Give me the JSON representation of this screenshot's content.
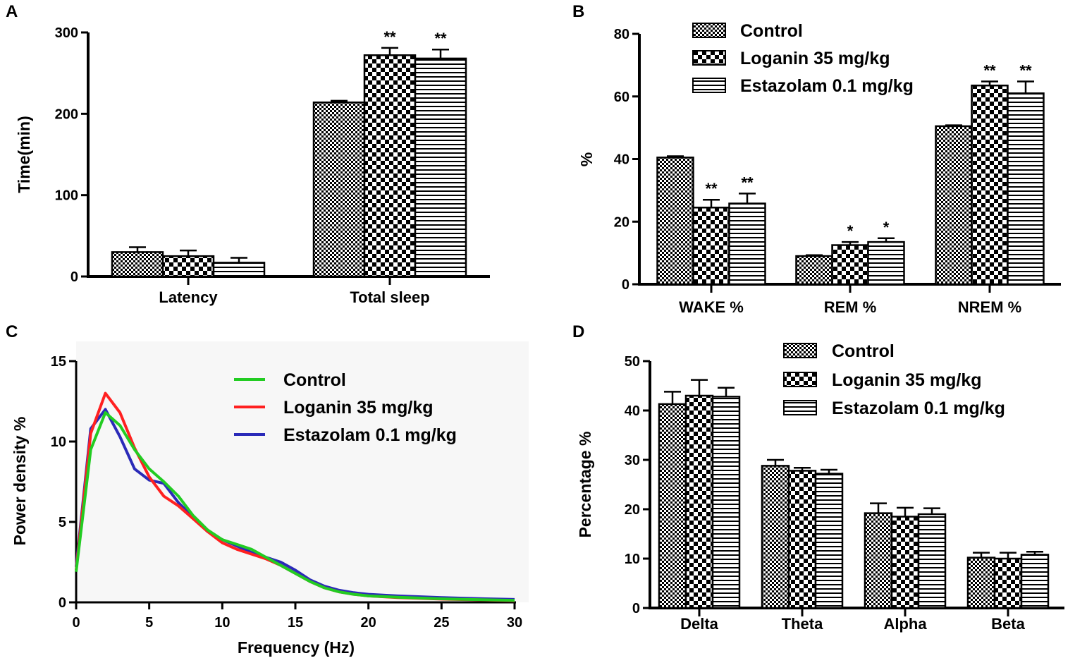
{
  "panels": {
    "A": "A",
    "B": "B",
    "C": "C",
    "D": "D"
  },
  "colors": {
    "control": "#000000",
    "loganin": "#ff2020",
    "estazolam": "#2a2ab8",
    "control_line": "#22cc22"
  },
  "chart_data": [
    {
      "id": "A",
      "type": "bar",
      "ylabel": "Time(min)",
      "ylim": [
        0,
        300
      ],
      "yticks": [
        "0",
        "100",
        "200",
        "300"
      ],
      "categories": [
        "Latency",
        "Total sleep"
      ],
      "series": [
        {
          "name": "Control",
          "pattern": "dense-checker",
          "values": [
            30,
            214
          ],
          "errors": [
            6,
            2
          ],
          "sig": [
            "",
            ""
          ]
        },
        {
          "name": "Loganin 35 mg/kg",
          "pattern": "checker",
          "values": [
            25,
            272
          ],
          "errors": [
            7,
            9
          ],
          "sig": [
            "",
            "**"
          ]
        },
        {
          "name": "Estazolam 0.1 mg/kg",
          "pattern": "stripes",
          "values": [
            17,
            268
          ],
          "errors": [
            6,
            11
          ],
          "sig": [
            "",
            "**"
          ]
        }
      ]
    },
    {
      "id": "B",
      "type": "bar",
      "ylabel": "%",
      "ylim": [
        0,
        80
      ],
      "yticks": [
        "0",
        "20",
        "40",
        "60",
        "80"
      ],
      "categories": [
        "WAKE %",
        "REM %",
        "NREM %"
      ],
      "legend": [
        "Control",
        "Loganin 35 mg/kg",
        "Estazolam 0.1 mg/kg"
      ],
      "series": [
        {
          "name": "Control",
          "pattern": "dense-checker",
          "values": [
            40.5,
            9,
            50.5
          ],
          "errors": [
            0.4,
            0.3,
            0.3
          ],
          "sig": [
            "",
            "",
            ""
          ]
        },
        {
          "name": "Loganin 35 mg/kg",
          "pattern": "checker",
          "values": [
            24.5,
            12.5,
            63.5
          ],
          "errors": [
            2.5,
            1,
            1.3
          ],
          "sig": [
            "**",
            "*",
            "**"
          ]
        },
        {
          "name": "Estazolam 0.1 mg/kg",
          "pattern": "stripes",
          "values": [
            25.8,
            13.5,
            61
          ],
          "errors": [
            3.2,
            1.2,
            3.8
          ],
          "sig": [
            "**",
            "*",
            "**"
          ]
        }
      ]
    },
    {
      "id": "C",
      "type": "line",
      "xlabel": "Frequency (Hz)",
      "ylabel": "Power density %",
      "xlim": [
        0,
        30
      ],
      "ylim": [
        0,
        15
      ],
      "xticks": [
        "0",
        "5",
        "10",
        "15",
        "20",
        "25",
        "30"
      ],
      "yticks": [
        "0",
        "5",
        "10",
        "15"
      ],
      "legend": [
        "Control",
        "Loganin 35 mg/kg",
        "Estazolam 0.1 mg/kg"
      ],
      "series": [
        {
          "name": "Control",
          "color": "#22cc22",
          "x": [
            0,
            1,
            2,
            3,
            4,
            5,
            6,
            7,
            8,
            9,
            10,
            11,
            12,
            13,
            14,
            15,
            16,
            17,
            18,
            19,
            20,
            22,
            25,
            28,
            30
          ],
          "y": [
            1.9,
            9.5,
            11.8,
            11.0,
            9.5,
            8.3,
            7.5,
            6.6,
            5.4,
            4.5,
            3.9,
            3.6,
            3.3,
            2.8,
            2.3,
            1.8,
            1.3,
            0.9,
            0.65,
            0.5,
            0.4,
            0.32,
            0.22,
            0.16,
            0.12
          ]
        },
        {
          "name": "Loganin 35 mg/kg",
          "color": "#ff2020",
          "x": [
            0,
            1,
            2,
            3,
            4,
            5,
            6,
            7,
            8,
            9,
            10,
            11,
            12,
            13,
            14,
            15,
            16,
            17,
            18,
            19,
            20,
            22,
            25,
            28,
            30
          ],
          "y": [
            2.0,
            10.5,
            13.0,
            11.8,
            9.6,
            7.8,
            6.6,
            6.0,
            5.2,
            4.4,
            3.7,
            3.3,
            3.0,
            2.7,
            2.3,
            1.8,
            1.3,
            0.9,
            0.65,
            0.5,
            0.4,
            0.3,
            0.2,
            0.15,
            0.1
          ]
        },
        {
          "name": "Estazolam 0.1 mg/kg",
          "color": "#2a2ab8",
          "x": [
            0,
            1,
            2,
            3,
            4,
            5,
            6,
            7,
            8,
            9,
            10,
            11,
            12,
            13,
            14,
            15,
            16,
            17,
            18,
            19,
            20,
            22,
            25,
            28,
            30
          ],
          "y": [
            2.2,
            10.8,
            12.0,
            10.3,
            8.3,
            7.6,
            7.4,
            6.2,
            5.3,
            4.4,
            3.9,
            3.5,
            3.1,
            2.8,
            2.5,
            2.0,
            1.4,
            1.0,
            0.75,
            0.6,
            0.5,
            0.4,
            0.3,
            0.22,
            0.18
          ]
        }
      ]
    },
    {
      "id": "D",
      "type": "bar",
      "ylabel": "Percentage %",
      "ylim": [
        0,
        50
      ],
      "yticks": [
        "0",
        "10",
        "20",
        "30",
        "40",
        "50"
      ],
      "categories": [
        "Delta",
        "Theta",
        "Alpha",
        "Beta"
      ],
      "legend": [
        "Control",
        "Loganin 35 mg/kg",
        "Estazolam 0.1 mg/kg"
      ],
      "series": [
        {
          "name": "Control",
          "pattern": "dense-checker",
          "values": [
            41.3,
            28.8,
            19.2,
            10.2
          ],
          "errors": [
            2.5,
            1.2,
            2.0,
            1.0
          ],
          "sig": [
            "",
            "",
            "",
            ""
          ]
        },
        {
          "name": "Loganin 35 mg/kg",
          "pattern": "checker",
          "values": [
            43.0,
            27.8,
            18.5,
            10.0
          ],
          "errors": [
            3.2,
            0.6,
            1.8,
            1.2
          ],
          "sig": [
            "",
            "",
            "",
            ""
          ]
        },
        {
          "name": "Estazolam 0.1 mg/kg",
          "pattern": "stripes",
          "values": [
            42.8,
            27.2,
            19.0,
            10.8
          ],
          "errors": [
            1.8,
            0.8,
            1.2,
            0.6
          ],
          "sig": [
            "",
            "",
            "",
            ""
          ]
        }
      ]
    }
  ]
}
